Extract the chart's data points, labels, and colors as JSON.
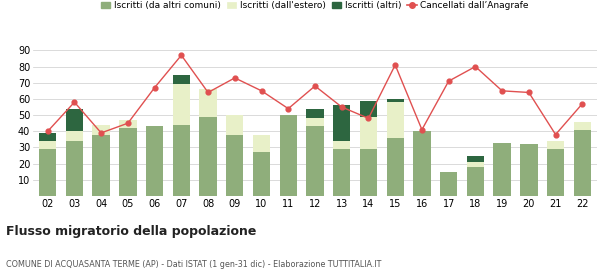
{
  "years": [
    "02",
    "03",
    "04",
    "05",
    "06",
    "07",
    "08",
    "09",
    "10",
    "11",
    "12",
    "13",
    "14",
    "15",
    "16",
    "17",
    "18",
    "19",
    "20",
    "21",
    "22"
  ],
  "iscritti_altri_comuni": [
    29,
    34,
    38,
    42,
    43,
    44,
    49,
    38,
    27,
    50,
    43,
    29,
    29,
    36,
    40,
    15,
    18,
    33,
    32,
    29,
    41
  ],
  "iscritti_estero": [
    5,
    6,
    6,
    5,
    0,
    25,
    17,
    12,
    11,
    0,
    5,
    5,
    20,
    22,
    0,
    0,
    3,
    0,
    0,
    5,
    5
  ],
  "iscritti_altri": [
    5,
    14,
    0,
    0,
    0,
    6,
    0,
    0,
    0,
    0,
    6,
    22,
    10,
    2,
    0,
    0,
    4,
    0,
    0,
    0,
    0
  ],
  "cancellati": [
    40,
    58,
    39,
    45,
    67,
    87,
    64,
    73,
    65,
    54,
    68,
    55,
    48,
    81,
    41,
    71,
    80,
    65,
    64,
    38,
    57
  ],
  "color_altri_comuni": "#8fae7b",
  "color_estero": "#e8f0c8",
  "color_altri": "#2d6640",
  "color_cancellati": "#e05050",
  "bg_color": "#ffffff",
  "grid_color": "#cccccc",
  "ylim": [
    0,
    90
  ],
  "yticks": [
    0,
    10,
    20,
    30,
    40,
    50,
    60,
    70,
    80,
    90
  ],
  "title": "Flusso migratorio della popolazione",
  "subtitle": "COMUNE DI ACQUASANTA TERME (AP) - Dati ISTAT (1 gen-31 dic) - Elaborazione TUTTITALIA.IT",
  "legend_labels": [
    "Iscritti (da altri comuni)",
    "Iscritti (dall'estero)",
    "Iscritti (altri)",
    "Cancellati dall’Anagrafe"
  ]
}
